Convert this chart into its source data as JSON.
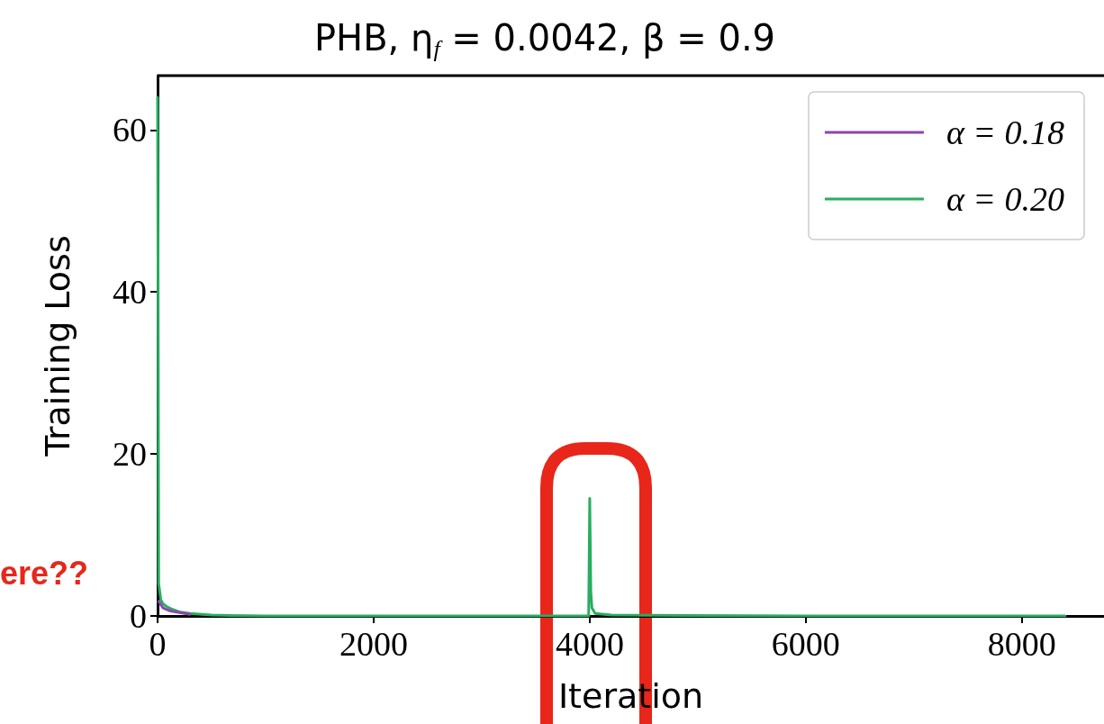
{
  "chart_data": {
    "type": "line",
    "title": "PHB, η$_{f}$ = 0.0042, β = 0.9",
    "xlabel": "Iteration",
    "ylabel": "Training Loss",
    "xlim": [
      0,
      8760
    ],
    "xticks": [
      0,
      2000,
      4000,
      6000,
      8000
    ],
    "ylim": [
      0,
      66.7
    ],
    "yticks": [
      0,
      20,
      40,
      60
    ],
    "legend": "top right",
    "grid": false,
    "annotations": [
      "ere??"
    ],
    "series": [
      {
        "name": "α = 0.18",
        "color": "#8e44ad",
        "x": [
          10,
          50,
          120,
          300
        ],
        "values": [
          1.8,
          1,
          0.6,
          0.2
        ]
      },
      {
        "name": "α = 0.20",
        "color": "#27ae60",
        "x": [
          0,
          5,
          10,
          20,
          30,
          50,
          80,
          120,
          200,
          300,
          500,
          1000,
          2000,
          3980,
          3990,
          4000,
          4010,
          4020,
          4050,
          4200,
          6000,
          8400
        ],
        "values": [
          64,
          40,
          4,
          3,
          2,
          1.5,
          1.2,
          0.9,
          0.5,
          0.3,
          0.1,
          0,
          0,
          0,
          0,
          14.5,
          3,
          1,
          0.3,
          0.1,
          0,
          0
        ]
      }
    ]
  }
}
